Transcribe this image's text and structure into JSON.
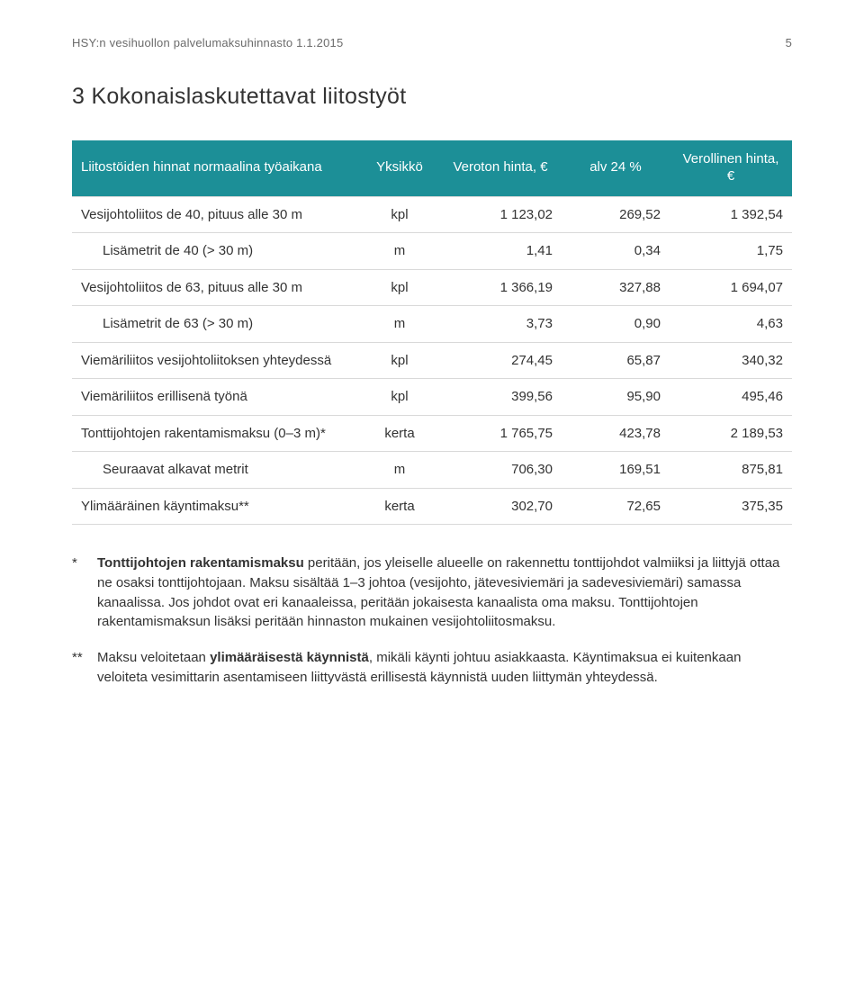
{
  "header": {
    "left": "HSY:n vesihuollon palvelumaksuhinnasto 1.1.2015",
    "page_number": "5"
  },
  "section_title": "3 Kokonaislaskutettavat liitostyöt",
  "table": {
    "header_bg": "#1c8f97",
    "header_fg": "#ffffff",
    "border_color": "#d9d9d9",
    "columns": [
      "Liitostöiden hinnat normaalina työaikana",
      "Yksikkö",
      "Veroton hinta, €",
      "alv 24 %",
      "Verollinen hinta, €"
    ],
    "rows": [
      {
        "label": "Vesijohtoliitos de 40, pituus alle 30 m",
        "unit": "kpl",
        "v1": "1 123,02",
        "v2": "269,52",
        "v3": "1 392,54",
        "indent": false
      },
      {
        "label": "Lisämetrit de 40 (> 30 m)",
        "unit": "m",
        "v1": "1,41",
        "v2": "0,34",
        "v3": "1,75",
        "indent": true
      },
      {
        "label": "Vesijohtoliitos de 63, pituus alle 30 m",
        "unit": "kpl",
        "v1": "1 366,19",
        "v2": "327,88",
        "v3": "1 694,07",
        "indent": false
      },
      {
        "label": "Lisämetrit de 63 (> 30 m)",
        "unit": "m",
        "v1": "3,73",
        "v2": "0,90",
        "v3": "4,63",
        "indent": true
      },
      {
        "label": "Viemäriliitos vesijohtoliitoksen yhteydessä",
        "unit": "kpl",
        "v1": "274,45",
        "v2": "65,87",
        "v3": "340,32",
        "indent": false
      },
      {
        "label": "Viemäriliitos erillisenä työnä",
        "unit": "kpl",
        "v1": "399,56",
        "v2": "95,90",
        "v3": "495,46",
        "indent": false
      },
      {
        "label": "Tonttijohtojen rakentamismaksu (0–3 m)*",
        "unit": "kerta",
        "v1": "1 765,75",
        "v2": "423,78",
        "v3": "2 189,53",
        "indent": false
      },
      {
        "label": "Seuraavat alkavat metrit",
        "unit": "m",
        "v1": "706,30",
        "v2": "169,51",
        "v3": "875,81",
        "indent": true
      },
      {
        "label": "Ylimääräinen käyntimaksu**",
        "unit": "kerta",
        "v1": "302,70",
        "v2": "72,65",
        "v3": "375,35",
        "indent": false
      }
    ]
  },
  "notes": {
    "note1": {
      "mark": "*",
      "bold1": "Tonttijohtojen rakentamismaksu",
      "text1": " peritään, jos yleiselle alueelle on rakennettu tonttijohdot valmiiksi ja liittyjä ottaa ne osaksi tonttijohtojaan. Maksu sisältää 1–3 johtoa (vesijohto, jätevesiviemäri ja sadevesiviemäri) samassa kanaalissa. Jos johdot ovat eri kanaaleissa, peritään jokaisesta kanaalista oma maksu. Tonttijohtojen rakentamismaksun lisäksi peritään hinnaston mukainen vesijohtoliitosmaksu."
    },
    "note2": {
      "mark": "**",
      "pre": "Maksu veloitetaan ",
      "bold": "ylimääräisestä käynnistä",
      "post": ", mikäli käynti johtuu asiakkaasta. Käyntimaksua ei kuitenkaan veloiteta vesimittarin asentamiseen liittyvästä erillisestä käynnistä uuden liittymän yhteydessä."
    }
  }
}
